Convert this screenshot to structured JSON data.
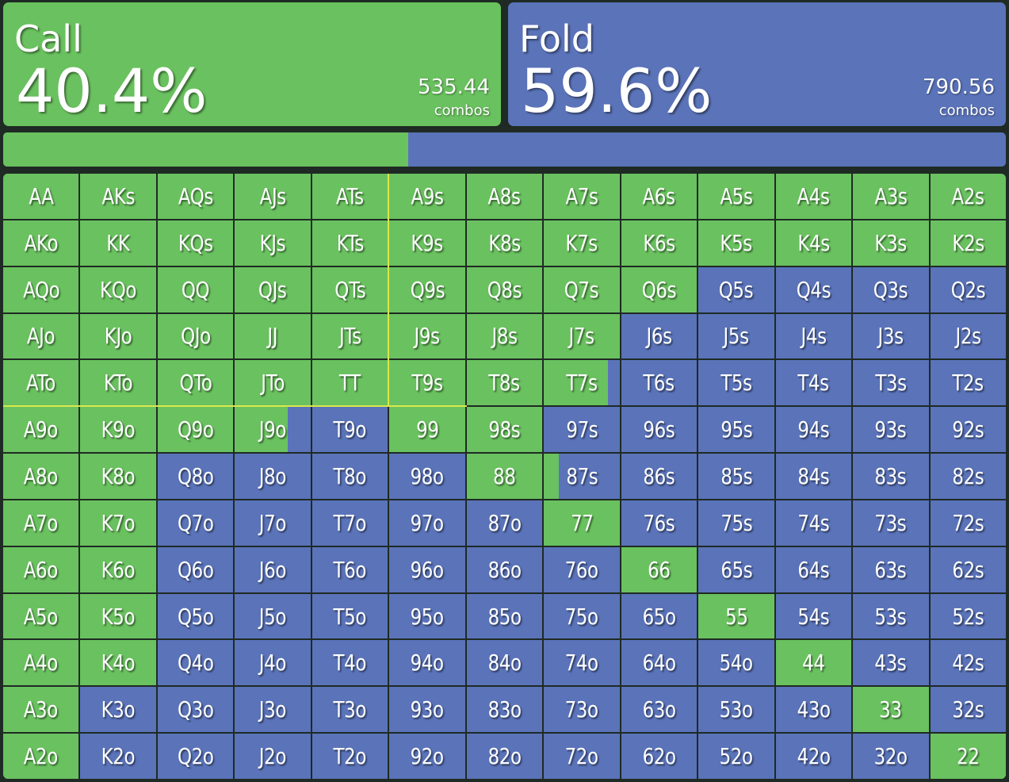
{
  "colors": {
    "call": "#6ac15f",
    "fold": "#5a73b9",
    "highlight": "#d8e84a"
  },
  "call": {
    "label": "Call",
    "percent": "40.4%",
    "combos": "535.44",
    "combos_label": "combos",
    "fraction": 0.404
  },
  "fold": {
    "label": "Fold",
    "percent": "59.6%",
    "combos": "790.56",
    "combos_label": "combos",
    "fraction": 0.596
  },
  "ranks": [
    "A",
    "K",
    "Q",
    "J",
    "T",
    "9",
    "8",
    "7",
    "6",
    "5",
    "4",
    "3",
    "2"
  ],
  "call_fraction": [
    [
      1,
      1,
      1,
      1,
      1,
      1,
      1,
      1,
      1,
      1,
      1,
      1,
      1
    ],
    [
      1,
      1,
      1,
      1,
      1,
      1,
      1,
      1,
      1,
      1,
      1,
      1,
      1
    ],
    [
      1,
      1,
      1,
      1,
      1,
      1,
      1,
      1,
      1,
      0,
      0,
      0,
      0
    ],
    [
      1,
      1,
      1,
      1,
      1,
      1,
      1,
      1,
      0,
      0,
      0,
      0,
      0
    ],
    [
      1,
      1,
      1,
      1,
      1,
      1,
      1,
      0.85,
      0,
      0,
      0,
      0,
      0
    ],
    [
      1,
      1,
      1,
      0.7,
      0,
      1,
      1,
      0,
      0,
      0,
      0,
      0,
      0
    ],
    [
      1,
      1,
      0,
      0,
      0,
      0,
      1,
      0.2,
      0,
      0,
      0,
      0,
      0
    ],
    [
      1,
      1,
      0,
      0,
      0,
      0,
      0,
      1,
      0,
      0,
      0,
      0,
      0
    ],
    [
      1,
      1,
      0,
      0,
      0,
      0,
      0,
      0,
      1,
      0,
      0,
      0,
      0
    ],
    [
      1,
      1,
      0,
      0,
      0,
      0,
      0,
      0,
      0,
      1,
      0,
      0,
      0
    ],
    [
      1,
      1,
      0,
      0,
      0,
      0,
      0,
      0,
      0,
      0,
      1,
      0,
      0
    ],
    [
      1,
      0,
      0,
      0,
      0,
      0,
      0,
      0,
      0,
      0,
      0,
      1,
      0
    ],
    [
      1,
      0,
      0,
      0,
      0,
      0,
      0,
      0,
      0,
      0,
      0,
      0,
      1
    ]
  ]
}
